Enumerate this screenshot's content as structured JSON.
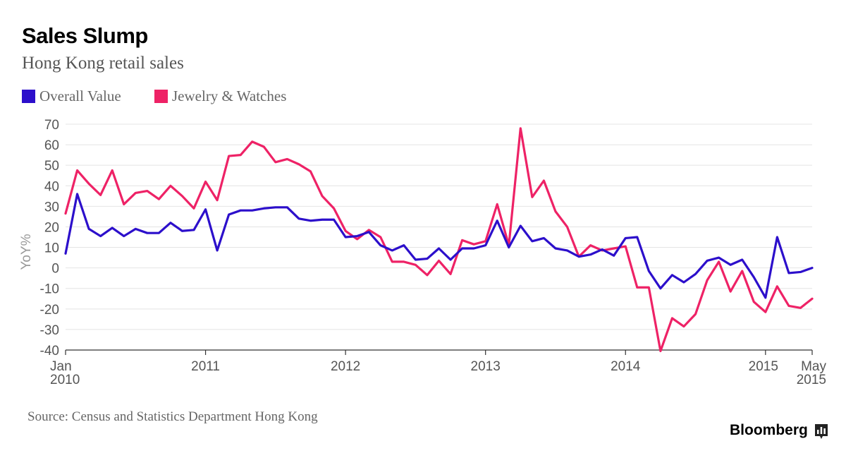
{
  "header": {
    "title": "Sales Slump",
    "subtitle": "Hong Kong retail sales"
  },
  "footer": {
    "source": "Source: Census and Statistics Department Hong Kong",
    "brand": "Bloomberg",
    "brand_icon": "bloomberg-terminal-icon"
  },
  "colors": {
    "overall": "#2c0fcb",
    "jewelry": "#ee2266",
    "grid": "#e4e4e4",
    "axis": "#333333"
  },
  "chart_data": {
    "type": "line",
    "title": "Sales Slump",
    "subtitle": "Hong Kong retail sales",
    "xlabel": "",
    "ylabel": "YoY%",
    "ylim": [
      -40,
      70
    ],
    "yticks": [
      70,
      60,
      50,
      40,
      30,
      20,
      10,
      0,
      -10,
      -20,
      -30,
      -40
    ],
    "grid": true,
    "legend_position": "top-left",
    "x_start": "Jan 2010",
    "x_end": "May 2015",
    "xticks": [
      {
        "line1": "Jan",
        "line2": "2010"
      },
      {
        "line1": "2011",
        "line2": ""
      },
      {
        "line1": "2012",
        "line2": ""
      },
      {
        "line1": "2013",
        "line2": ""
      },
      {
        "line1": "2014",
        "line2": ""
      },
      {
        "line1": "2015",
        "line2": ""
      },
      {
        "line1": "May",
        "line2": "2015"
      }
    ],
    "series": [
      {
        "name": "Overall Value",
        "color": "#2c0fcb",
        "values": [
          7,
          36,
          19,
          15.5,
          19.5,
          15.5,
          19,
          17,
          17,
          22,
          18,
          18.5,
          28.5,
          8.5,
          26,
          28,
          28,
          29,
          29.5,
          29.5,
          24,
          23,
          23.5,
          23.5,
          15,
          15.5,
          17.5,
          11,
          8.5,
          11,
          4,
          4.5,
          9.5,
          4,
          9.5,
          9.5,
          11,
          23,
          10,
          20.5,
          13,
          14.5,
          9.5,
          8.5,
          5.5,
          6.5,
          9,
          6,
          14.5,
          15,
          -1.5,
          -10,
          -3.5,
          -7,
          -3,
          3.5,
          5,
          1.5,
          4,
          -4.5,
          -14.5,
          15,
          -2.5,
          -2,
          0
        ]
      },
      {
        "name": "Jewelry & Watches",
        "color": "#ee2266",
        "values": [
          26.5,
          47.5,
          41,
          35.5,
          47.5,
          31,
          36.5,
          37.5,
          33.5,
          40,
          35,
          29,
          42,
          33,
          54.5,
          55,
          61.5,
          59,
          51.5,
          53,
          50.5,
          47,
          35,
          29,
          18,
          14,
          18.5,
          15,
          3,
          3,
          1.5,
          -3.5,
          3.5,
          -3,
          13.5,
          11.5,
          13,
          31,
          11,
          68,
          34.5,
          42.5,
          27.5,
          20,
          5.5,
          11,
          8.5,
          9.5,
          10.5,
          -9.5,
          -9.5,
          -40.5,
          -24.5,
          -28.5,
          -22.5,
          -6,
          3,
          -11.5,
          -1.5,
          -16.5,
          -21.5,
          -9,
          -18.5,
          -19.5,
          -15
        ]
      }
    ]
  }
}
